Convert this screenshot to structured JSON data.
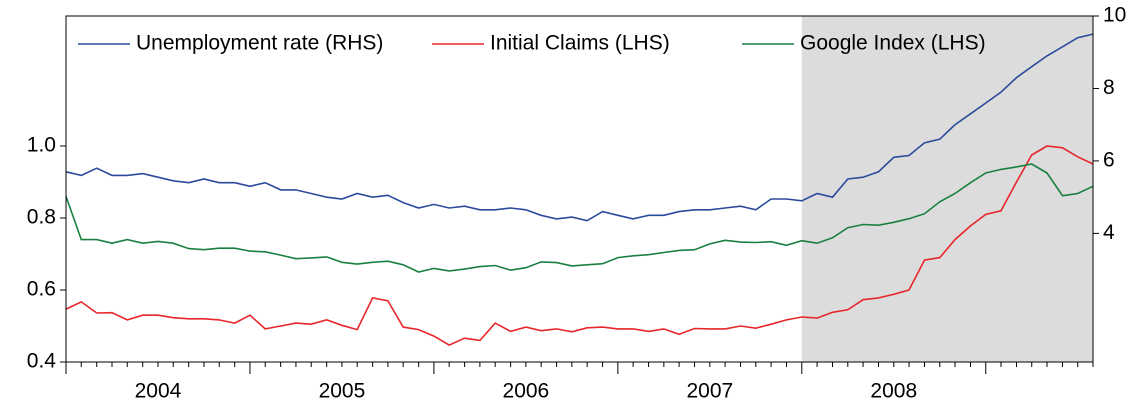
{
  "chart_data": {
    "type": "line",
    "x": [
      2004,
      2004.083,
      2004.167,
      2004.25,
      2004.333,
      2004.417,
      2004.5,
      2004.583,
      2004.667,
      2004.75,
      2004.833,
      2004.917,
      2005,
      2005.083,
      2005.167,
      2005.25,
      2005.333,
      2005.417,
      2005.5,
      2005.583,
      2005.667,
      2005.75,
      2005.833,
      2005.917,
      2006,
      2006.083,
      2006.167,
      2006.25,
      2006.333,
      2006.417,
      2006.5,
      2006.583,
      2006.667,
      2006.75,
      2006.833,
      2006.917,
      2007,
      2007.083,
      2007.167,
      2007.25,
      2007.333,
      2007.417,
      2007.5,
      2007.583,
      2007.667,
      2007.75,
      2007.833,
      2007.917,
      2008,
      2008.083,
      2008.167,
      2008.25,
      2008.333,
      2008.417,
      2008.5,
      2008.583,
      2008.667,
      2008.75,
      2008.833,
      2008.917,
      2009,
      2009.083,
      2009.167,
      2009.25,
      2009.333,
      2009.417,
      2009.5,
      2009.583
    ],
    "series": [
      {
        "name": "Unemployment rate (RHS)",
        "color": "#2a4b9b",
        "axis": "y2",
        "values": [
          5.7,
          5.6,
          5.8,
          5.6,
          5.6,
          5.65,
          5.55,
          5.45,
          5.4,
          5.5,
          5.4,
          5.4,
          5.3,
          5.4,
          5.2,
          5.2,
          5.1,
          5.0,
          4.95,
          5.1,
          5.0,
          5.05,
          4.85,
          4.7,
          4.8,
          4.7,
          4.75,
          4.65,
          4.65,
          4.7,
          4.65,
          4.5,
          4.4,
          4.45,
          4.35,
          4.6,
          4.5,
          4.4,
          4.5,
          4.5,
          4.6,
          4.65,
          4.65,
          4.7,
          4.75,
          4.65,
          4.95,
          4.95,
          4.9,
          5.1,
          5.0,
          5.5,
          5.55,
          5.7,
          6.1,
          6.15,
          6.5,
          6.6,
          7.0,
          7.3,
          7.6,
          7.9,
          8.3,
          8.6,
          8.9,
          9.15,
          9.4,
          9.5
        ]
      },
      {
        "name": "Initial Claims (LHS)",
        "color": "#e8262b",
        "values": [
          0.547,
          0.567,
          0.536,
          0.537,
          0.517,
          0.53,
          0.53,
          0.523,
          0.52,
          0.52,
          0.517,
          0.508,
          0.53,
          0.492,
          0.5,
          0.508,
          0.505,
          0.517,
          0.502,
          0.49,
          0.578,
          0.57,
          0.497,
          0.49,
          0.472,
          0.447,
          0.466,
          0.46,
          0.508,
          0.485,
          0.497,
          0.487,
          0.492,
          0.484,
          0.495,
          0.497,
          0.492,
          0.492,
          0.485,
          0.492,
          0.477,
          0.493,
          0.492,
          0.492,
          0.5,
          0.494,
          0.505,
          0.517,
          0.525,
          0.522,
          0.538,
          0.545,
          0.573,
          0.578,
          0.588,
          0.6,
          0.683,
          0.69,
          0.74,
          0.778,
          0.81,
          0.82,
          0.9,
          0.975,
          1.0,
          0.995,
          0.97,
          0.95
        ]
      },
      {
        "name": "Google Index (LHS)",
        "color": "#1a8040",
        "values": [
          0.86,
          0.74,
          0.74,
          0.73,
          0.74,
          0.73,
          0.735,
          0.73,
          0.715,
          0.712,
          0.716,
          0.716,
          0.708,
          0.706,
          0.697,
          0.687,
          0.689,
          0.692,
          0.677,
          0.672,
          0.677,
          0.68,
          0.67,
          0.65,
          0.66,
          0.653,
          0.658,
          0.665,
          0.668,
          0.655,
          0.662,
          0.678,
          0.676,
          0.667,
          0.67,
          0.673,
          0.69,
          0.695,
          0.698,
          0.704,
          0.71,
          0.712,
          0.728,
          0.738,
          0.733,
          0.732,
          0.734,
          0.724,
          0.737,
          0.73,
          0.745,
          0.773,
          0.782,
          0.78,
          0.788,
          0.798,
          0.812,
          0.845,
          0.868,
          0.898,
          0.925,
          0.935,
          0.942,
          0.95,
          0.925,
          0.862,
          0.868,
          0.888
        ]
      }
    ],
    "xlim": [
      2004,
      2009.583
    ],
    "xticks": [
      {
        "value": 2004.5,
        "label": "2004"
      },
      {
        "value": 2005.5,
        "label": "2005"
      },
      {
        "value": 2006.5,
        "label": "2006"
      },
      {
        "value": 2007.5,
        "label": "2007"
      },
      {
        "value": 2008.5,
        "label": "2008"
      }
    ],
    "ylim": [
      0.4,
      1.361
    ],
    "yticks": [
      0.4,
      0.6,
      0.8,
      {
        "value": 1,
        "label": "1.0"
      }
    ],
    "y2lim": [
      0.45,
      10
    ],
    "y2ticks": [
      4,
      6,
      8,
      10
    ],
    "shaded_region": [
      2008,
      2009.583
    ],
    "shade_color": "#dcdcdc",
    "legend": "top-left"
  }
}
